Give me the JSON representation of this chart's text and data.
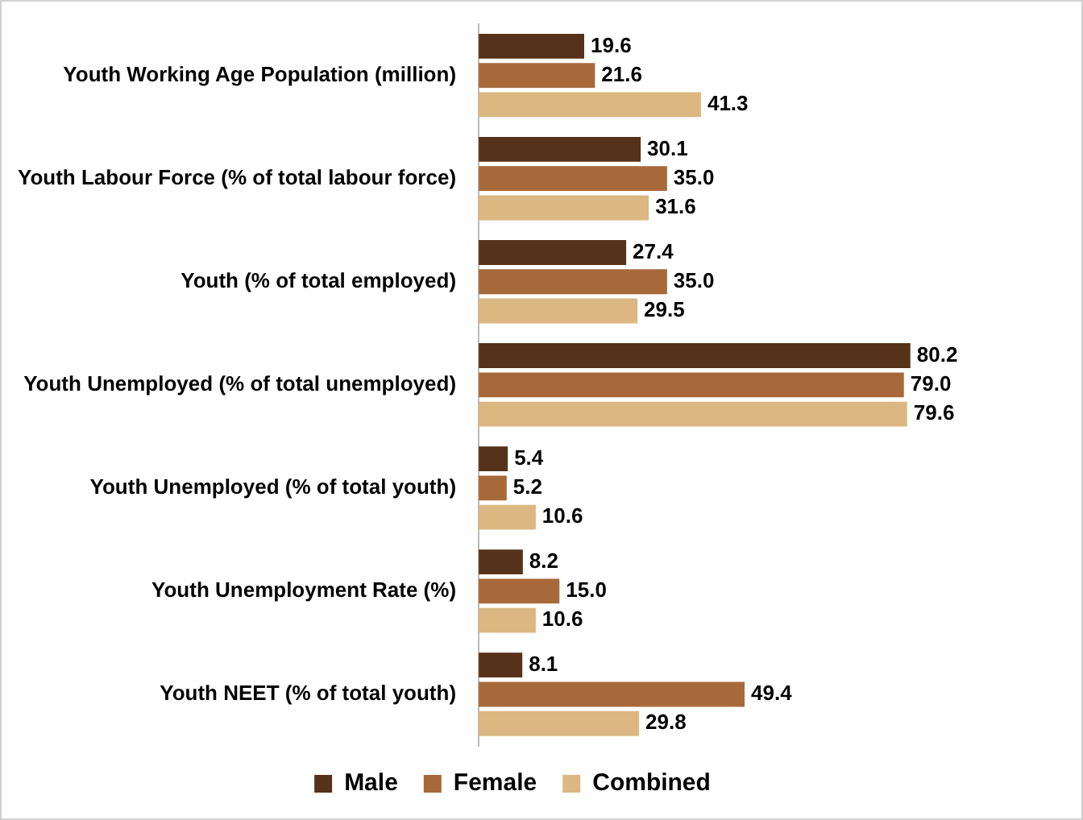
{
  "chart_data": {
    "type": "bar",
    "orientation": "horizontal",
    "categories": [
      "Youth Working Age Population (million)",
      "Youth Labour Force (% of total labour force)",
      "Youth (% of total employed)",
      "Youth Unemployed (% of total unemployed)",
      "Youth Unemployed (% of total youth)",
      "Youth Unemployment Rate (%)",
      "Youth NEET (% of total youth)"
    ],
    "series": [
      {
        "name": "Male",
        "color": "#553219",
        "values": [
          19.6,
          30.1,
          27.4,
          80.2,
          5.4,
          8.2,
          8.1
        ],
        "value_labels": [
          "19.6",
          "30.1",
          "27.4",
          "80.2",
          "5.4",
          "8.2",
          "8.1"
        ]
      },
      {
        "name": "Female",
        "color": "#a8693a",
        "values": [
          21.6,
          35,
          35,
          79,
          5.2,
          15,
          49.4
        ],
        "value_labels": [
          "21.6",
          "35.0",
          "35.0",
          "79.0",
          "5.2",
          "15.0",
          "49.4"
        ]
      },
      {
        "name": "Combined",
        "color": "#dcb781",
        "values": [
          41.3,
          31.6,
          29.5,
          79.6,
          10.6,
          10.6,
          29.8
        ],
        "value_labels": [
          "41.3",
          "31.6",
          "29.5",
          "79.6",
          "10.6",
          "10.6",
          "29.8"
        ]
      }
    ],
    "legend": "bottom"
  }
}
